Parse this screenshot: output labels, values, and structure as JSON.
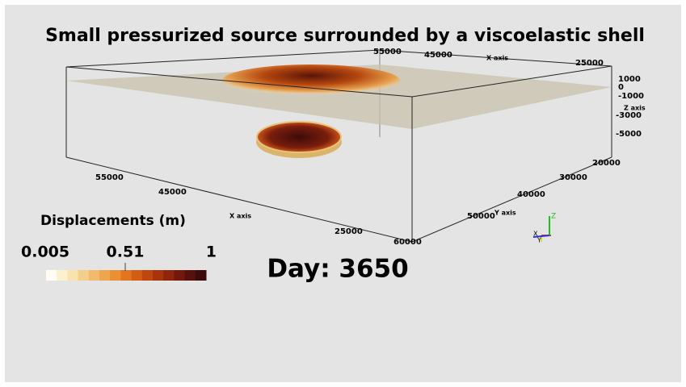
{
  "title": "Small pressurized source surrounded by a viscoelastic shell",
  "axes": {
    "x_top": {
      "ticks": [
        "55000",
        "45000",
        "25000"
      ],
      "label": "X axis"
    },
    "z": {
      "ticks": [
        "1000",
        "0",
        "-1000",
        "-3000",
        "-5000"
      ],
      "label": "Z axis"
    },
    "x_bottom": {
      "ticks": [
        "55000",
        "45000",
        "25000"
      ],
      "label": "X axis"
    },
    "y": {
      "ticks": [
        "20000",
        "30000",
        "40000",
        "50000",
        "60000"
      ],
      "label": "Y axis"
    }
  },
  "colorbar": {
    "title": "Displacements (m)",
    "labels": [
      "0.005",
      "0.51",
      "1"
    ],
    "colors": [
      "#fffdf3",
      "#fcf1cf",
      "#f8e2ae",
      "#f4cf8c",
      "#f1bb6b",
      "#eea64e",
      "#ea8f33",
      "#e2761f",
      "#d45d14",
      "#c0460f",
      "#a8340d",
      "#8e250c",
      "#73180c",
      "#57100b",
      "#3c0a0a"
    ]
  },
  "time_label": "Day: 3650",
  "orientation_axes": {
    "x": "X",
    "y": "Y",
    "z": "Z"
  }
}
